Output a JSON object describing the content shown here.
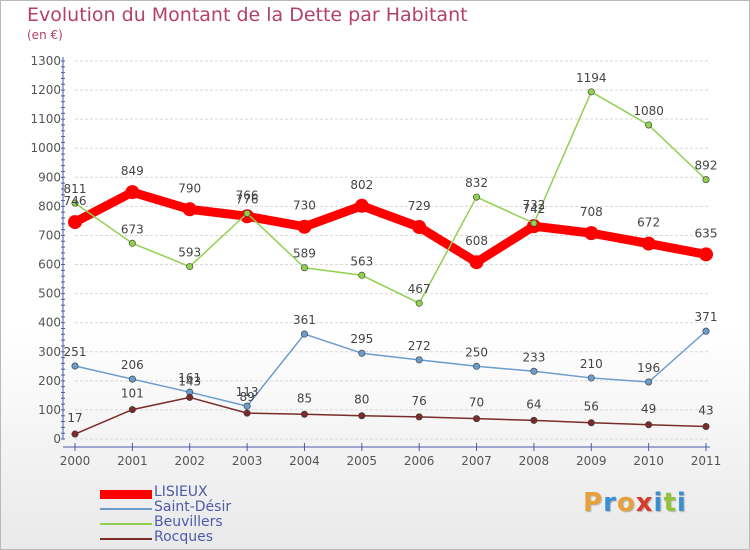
{
  "title": "Evolution du Montant de la Dette par Habitant",
  "subtitle": "(en €)",
  "logo_text": "Proxiti",
  "chart_data": {
    "type": "line",
    "title": "Evolution du Montant de la Dette par Habitant",
    "subtitle": "(en €)",
    "x": [
      "2000",
      "2001",
      "2002",
      "2003",
      "2004",
      "2005",
      "2006",
      "2007",
      "2008",
      "2009",
      "2010",
      "2011"
    ],
    "yticks": [
      0,
      100,
      200,
      300,
      400,
      500,
      600,
      700,
      800,
      900,
      1000,
      1100,
      1200,
      1300
    ],
    "ylim": [
      0,
      1300
    ],
    "grid": "horizontal",
    "legend_position": "bottom-left",
    "series": [
      {
        "name": "LISIEUX",
        "color": "#ff0000",
        "values": [
          746,
          849,
          790,
          766,
          730,
          802,
          729,
          608,
          732,
          708,
          672,
          635
        ]
      },
      {
        "name": "Saint-Désir",
        "color": "#6a9ccd",
        "values": [
          251,
          206,
          161,
          113,
          361,
          295,
          272,
          250,
          233,
          210,
          196,
          371
        ]
      },
      {
        "name": "Beuvillers",
        "color": "#8fd14f",
        "values": [
          811,
          673,
          593,
          776,
          589,
          563,
          467,
          832,
          742,
          1194,
          1080,
          892
        ]
      },
      {
        "name": "Rocques",
        "color": "#7a2b2b",
        "values": [
          17,
          101,
          143,
          89,
          85,
          80,
          76,
          70,
          64,
          56,
          49,
          43
        ]
      }
    ]
  }
}
